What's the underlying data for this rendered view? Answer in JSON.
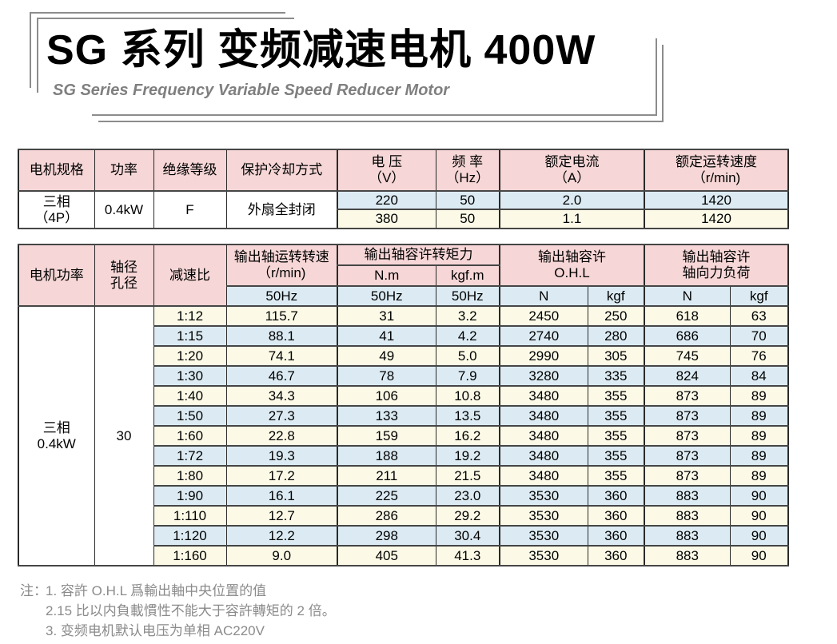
{
  "title": {
    "main": "SG 系列 变频减速电机 400W",
    "subtitle": "SG Series Frequency Variable Speed Reducer Motor"
  },
  "colors": {
    "header_pink": "#f6d6d6",
    "row_blue": "#dcebf3",
    "row_cream": "#fcfae7",
    "border_dark": "#2a2a2a",
    "border_row": "#464646",
    "note_gray": "#8b8b8b",
    "subtitle_gray": "#7f7f7f",
    "frame_gray": "#8c8c8c"
  },
  "spec_table": {
    "col_headers": {
      "spec": "电机规格",
      "power": "功率",
      "insulation": "绝缘等级",
      "cooling": "保护冷却方式",
      "voltage_l1": "电 压",
      "voltage_l2": "（V）",
      "freq_l1": "频 率",
      "freq_l2": "（Hz）",
      "current_l1": "额定电流",
      "current_l2": "（A）",
      "speed_l1": "额定运转速度",
      "speed_l2": "（r/min)"
    },
    "merged": {
      "spec_l1": "三相",
      "spec_l2": "（4P）",
      "power": "0.4kW",
      "insulation": "F",
      "cooling": "外扇全封闭"
    },
    "rows": [
      {
        "voltage": "220",
        "freq": "50",
        "current": "2.0",
        "speed": "1420"
      },
      {
        "voltage": "380",
        "freq": "50",
        "current": "1.1",
        "speed": "1420"
      }
    ]
  },
  "perf_table": {
    "col_headers": {
      "motor_power": "电机功率",
      "shaft_l1": "轴径",
      "shaft_l2": "孔径",
      "ratio": "减速比",
      "out_speed_l1": "输出轴运转转速",
      "out_speed_l2": "（r/min)",
      "torque_group": "输出轴容许转矩力",
      "torque_nm": "N.m",
      "torque_kgfm": "kgf.m",
      "ohl_l1": "输出轴容许",
      "ohl_l2": "O.H.L",
      "axial_l1": "输出轴容许",
      "axial_l2": "轴向力负荷",
      "sub_speed_hz": "50Hz",
      "sub_nm_hz": "50Hz",
      "sub_kgfm_hz": "50Hz",
      "sub_ohl_n": "N",
      "sub_ohl_kgf": "kgf",
      "sub_axial_n": "N",
      "sub_axial_kgf": "kgf"
    },
    "merged": {
      "motor_l1": "三相",
      "motor_l2": "0.4kW",
      "shaft": "30"
    },
    "rows": [
      [
        "1:12",
        "115.7",
        "31",
        "3.2",
        "2450",
        "250",
        "618",
        "63"
      ],
      [
        "1:15",
        "88.1",
        "41",
        "4.2",
        "2740",
        "280",
        "686",
        "70"
      ],
      [
        "1:20",
        "74.1",
        "49",
        "5.0",
        "2990",
        "305",
        "745",
        "76"
      ],
      [
        "1:30",
        "46.7",
        "78",
        "7.9",
        "3280",
        "335",
        "824",
        "84"
      ],
      [
        "1:40",
        "34.3",
        "106",
        "10.8",
        "3480",
        "355",
        "873",
        "89"
      ],
      [
        "1:50",
        "27.3",
        "133",
        "13.5",
        "3480",
        "355",
        "873",
        "89"
      ],
      [
        "1:60",
        "22.8",
        "159",
        "16.2",
        "3480",
        "355",
        "873",
        "89"
      ],
      [
        "1:72",
        "19.3",
        "188",
        "19.2",
        "3480",
        "355",
        "873",
        "89"
      ],
      [
        "1:80",
        "17.2",
        "211",
        "21.5",
        "3480",
        "355",
        "873",
        "89"
      ],
      [
        "1:90",
        "16.1",
        "225",
        "23.0",
        "3530",
        "360",
        "883",
        "90"
      ],
      [
        "1:110",
        "12.7",
        "286",
        "29.2",
        "3530",
        "360",
        "883",
        "90"
      ],
      [
        "1:120",
        "12.2",
        "298",
        "30.4",
        "3530",
        "360",
        "883",
        "90"
      ],
      [
        "1:160",
        "9.0",
        "405",
        "41.3",
        "3530",
        "360",
        "883",
        "90"
      ]
    ]
  },
  "notes": {
    "label": "注：",
    "items": [
      "1. 容許 O.H.L 爲輸出軸中央位置的值",
      "2.15 比以内負載慣性不能大于容許轉矩的 2 倍。",
      "3. 变频电机默认电压为单相 AC220V"
    ]
  }
}
